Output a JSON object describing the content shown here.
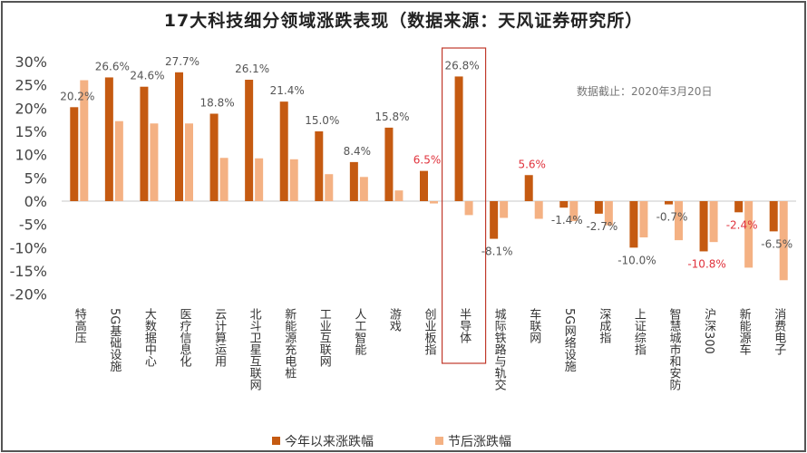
{
  "chart_data": {
    "type": "bar",
    "title": "17大科技细分领域涨跌表现（数据来源：天风证券研究所）",
    "annotation": "数据截止：2020年3月20日",
    "categories": [
      "特高压",
      "5G基础设施",
      "大数据中心",
      "医疗信息化",
      "云计算运用",
      "北斗卫星互联网",
      "新能源充电桩",
      "工业互联网",
      "人工智能",
      "游戏",
      "创业板指",
      "半导体",
      "城际铁路与轨交",
      "车联网",
      "5G网络设施",
      "深成指",
      "上证综指",
      "智慧城市和安防",
      "沪深300",
      "新能源车",
      "消费电子"
    ],
    "series": [
      {
        "name": "今年以来涨跌幅",
        "color": "#c55a11",
        "values": [
          20.2,
          26.6,
          24.6,
          27.7,
          18.8,
          26.1,
          21.4,
          15.0,
          8.4,
          15.8,
          6.5,
          26.8,
          -8.1,
          5.6,
          -1.4,
          -2.7,
          -10.0,
          -0.7,
          -10.8,
          -2.4,
          -6.5
        ],
        "data_labels": [
          "20.2%",
          "26.6%",
          "24.6%",
          "27.7%",
          "18.8%",
          "26.1%",
          "21.4%",
          "15.0%",
          "8.4%",
          "15.8%",
          "6.5%",
          "26.8%",
          "-8.1%",
          "5.6%",
          "-1.4%",
          "-2.7%",
          "-10.0%",
          "-0.7%",
          "-10.8%",
          "-2.4%",
          "-6.5%"
        ],
        "label_colors": [
          "#555",
          "#555",
          "#555",
          "#555",
          "#555",
          "#555",
          "#555",
          "#555",
          "#555",
          "#555",
          "#e0323c",
          "#555",
          "#555",
          "#e0323c",
          "#555",
          "#555",
          "#555",
          "#555",
          "#e0323c",
          "#e0323c",
          "#555"
        ]
      },
      {
        "name": "节后涨跌幅",
        "color": "#f4b183",
        "values": [
          26.0,
          17.2,
          16.7,
          16.7,
          9.3,
          9.2,
          9.0,
          5.8,
          5.2,
          2.3,
          -0.5,
          -3.0,
          -3.6,
          -3.8,
          -4.3,
          -5.2,
          -7.8,
          -8.4,
          -8.8,
          -14.3,
          -17.0
        ]
      }
    ],
    "yticks": [
      "30%",
      "25%",
      "20%",
      "15%",
      "10%",
      "5%",
      "0%",
      "-5%",
      "-10%",
      "-15%",
      "-20%"
    ],
    "ylim": [
      -20,
      30
    ],
    "highlight": "半导体",
    "highlight_color": "#c0392b",
    "legend": "bottom",
    "grid": false
  }
}
